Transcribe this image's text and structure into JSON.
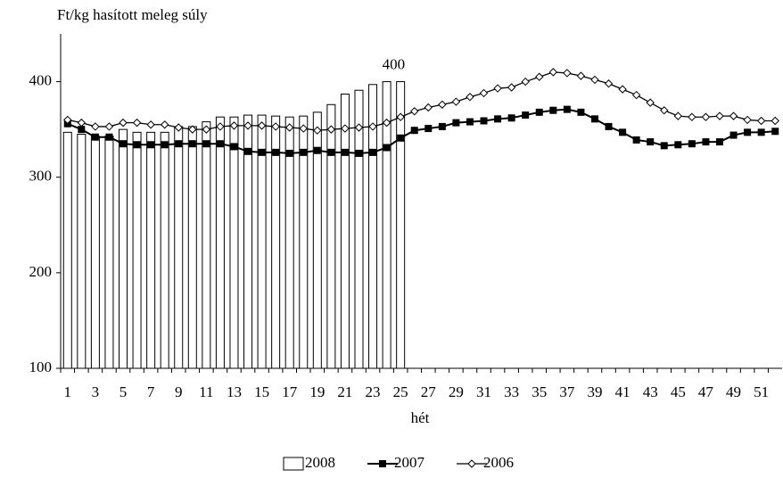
{
  "chart_data": {
    "type": "bar_line",
    "y_label": "Ft/kg hasított meleg súly",
    "x_label": "hét",
    "categories": [
      1,
      null,
      3,
      null,
      5,
      null,
      7,
      null,
      9,
      null,
      11,
      null,
      13,
      null,
      15,
      null,
      17,
      null,
      19,
      null,
      21,
      null,
      23,
      null,
      25,
      null,
      27,
      null,
      29,
      null,
      31,
      null,
      33,
      null,
      35,
      null,
      37,
      null,
      39,
      null,
      41,
      null,
      43,
      null,
      45,
      null,
      47,
      null,
      49,
      null,
      51,
      null
    ],
    "series": [
      {
        "name": "2008",
        "type": "bar",
        "color": "#ffffff",
        "values": [
          347,
          345,
          343,
          343,
          350,
          347,
          347,
          347,
          353,
          353,
          358,
          363,
          363,
          365,
          365,
          364,
          363,
          364,
          368,
          376,
          387,
          391,
          397,
          400,
          400,
          null,
          null,
          null,
          null,
          null,
          null,
          null,
          null,
          null,
          null,
          null,
          null,
          null,
          null,
          null,
          null,
          null,
          null,
          null,
          null,
          null,
          null,
          null,
          null,
          null,
          null,
          null
        ],
        "value_labels": [
          null,
          null,
          null,
          null,
          null,
          null,
          null,
          null,
          null,
          null,
          null,
          null,
          null,
          null,
          null,
          null,
          null,
          null,
          null,
          null,
          null,
          null,
          null,
          "400",
          null,
          null,
          null,
          null,
          null,
          null,
          null,
          null,
          null,
          null,
          null,
          null,
          null,
          null,
          null,
          null,
          null,
          null,
          null,
          null,
          null,
          null,
          null,
          null,
          null,
          null,
          null,
          null
        ]
      },
      {
        "name": "2007",
        "type": "line",
        "marker": "square",
        "color": "#000000",
        "values": [
          356,
          350,
          342,
          342,
          335,
          334,
          334,
          334,
          335,
          335,
          335,
          335,
          332,
          327,
          326,
          326,
          325,
          326,
          328,
          326,
          326,
          325,
          326,
          331,
          341,
          349,
          351,
          353,
          357,
          358,
          359,
          361,
          362,
          365,
          368,
          370,
          371,
          368,
          361,
          353,
          347,
          339,
          337,
          333,
          334,
          335,
          337,
          337,
          344,
          347,
          347,
          348
        ]
      },
      {
        "name": "2006",
        "type": "line",
        "marker": "diamond",
        "color": "#000000",
        "values": [
          360,
          357,
          353,
          353,
          357,
          357,
          355,
          355,
          352,
          350,
          350,
          353,
          354,
          354,
          354,
          353,
          352,
          351,
          349,
          350,
          351,
          352,
          353,
          357,
          363,
          369,
          373,
          376,
          379,
          384,
          388,
          393,
          394,
          400,
          405,
          410,
          409,
          406,
          402,
          398,
          392,
          386,
          378,
          370,
          364,
          363,
          363,
          364,
          364,
          360,
          359,
          359
        ]
      }
    ],
    "ylim": [
      100,
      450
    ],
    "yticks": [
      100,
      200,
      300,
      400
    ]
  }
}
